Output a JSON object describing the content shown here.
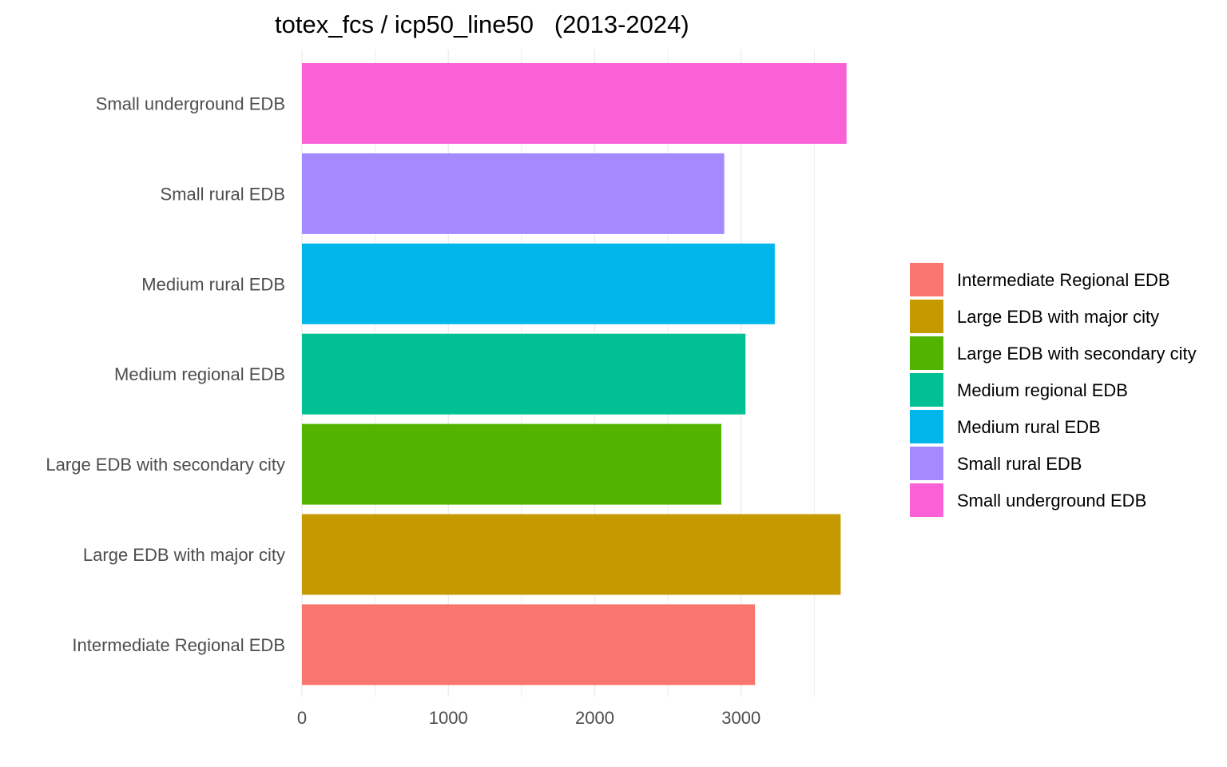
{
  "chart_data": {
    "type": "bar",
    "orientation": "horizontal",
    "title": "totex_fcs / icp50_line50   (2013-2024)",
    "xlabel": "",
    "ylabel": "",
    "xlim": [
      0,
      4000
    ],
    "x_ticks": [
      0,
      1000,
      2000,
      3000
    ],
    "x_ticks_labels": [
      "0",
      "1000",
      "2000",
      "3000"
    ],
    "grid": true,
    "legend_position": "right",
    "categories": [
      "Intermediate Regional EDB",
      "Large EDB with major city",
      "Large EDB with secondary city",
      "Medium regional EDB",
      "Medium rural EDB",
      "Small rural EDB",
      "Small underground EDB"
    ],
    "values": [
      3095,
      3680,
      2865,
      3030,
      3230,
      2885,
      3720
    ],
    "colors": [
      "#F8766D",
      "#C49A00",
      "#53B400",
      "#00C094",
      "#00B6EB",
      "#A58AFF",
      "#FB61D7"
    ],
    "legend": [
      "Intermediate Regional EDB",
      "Large EDB with major city",
      "Large EDB with secondary city",
      "Medium regional EDB",
      "Medium rural EDB",
      "Small rural EDB",
      "Small underground EDB"
    ]
  }
}
